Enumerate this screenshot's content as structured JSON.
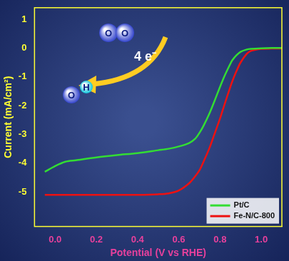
{
  "chart_data": {
    "type": "line",
    "x_label": "Potential (V vs RHE)",
    "y_label": "Current (mA/cm²)",
    "xlim": [
      -0.1,
      1.1
    ],
    "xticks": [
      {
        "value": 0,
        "label": "0.0"
      },
      0.2,
      0.4,
      0.6,
      0.8,
      {
        "value": 1,
        "label": "1.0"
      }
    ],
    "ylim": [
      -6.2,
      1.4
    ],
    "yticks": [
      -5,
      -4,
      -3,
      -2,
      -1,
      0,
      1
    ],
    "grid": false,
    "legend": "lower right",
    "annotations": [
      "O",
      "O",
      "4 e⁻",
      "O",
      "H"
    ],
    "x": [
      -0.05,
      0,
      0.05,
      0.1,
      0.2,
      0.3,
      0.4,
      0.5,
      0.55,
      0.6,
      0.65,
      0.68,
      0.7,
      0.72,
      0.75,
      0.77,
      0.8,
      0.82,
      0.85,
      0.86,
      0.88,
      0.9,
      0.93,
      0.95,
      1.0,
      1.05,
      1.1
    ],
    "series": [
      {
        "name": "Pt/C",
        "color": "#33dd33",
        "values": [
          -4.3,
          -4.1,
          -3.95,
          -3.9,
          -3.8,
          -3.72,
          -3.65,
          -3.55,
          -3.5,
          -3.42,
          -3.3,
          -3.15,
          -2.95,
          -2.7,
          -2.25,
          -1.9,
          -1.35,
          -1.0,
          -0.55,
          -0.42,
          -0.25,
          -0.13,
          -0.05,
          -0.03,
          -0.01,
          0,
          0
        ]
      },
      {
        "name": "Fe-N/C-800",
        "color": "#ee1111",
        "values": [
          -5.1,
          -5.1,
          -5.1,
          -5.1,
          -5.1,
          -5.1,
          -5.1,
          -5.08,
          -5.05,
          -4.95,
          -4.7,
          -4.45,
          -4.25,
          -3.95,
          -3.45,
          -3.05,
          -2.45,
          -2.0,
          -1.35,
          -1.15,
          -0.8,
          -0.5,
          -0.2,
          -0.1,
          -0.03,
          -0.02,
          -0.02
        ]
      }
    ]
  }
}
